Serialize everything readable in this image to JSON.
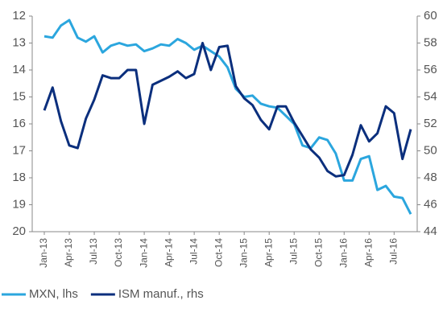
{
  "chart_data": {
    "type": "line",
    "categories": [
      "Jan-13",
      null,
      null,
      "Apr-13",
      null,
      null,
      "Jul-13",
      null,
      null,
      "Oct-13",
      null,
      null,
      "Jan-14",
      null,
      null,
      "Apr-14",
      null,
      null,
      "Jul-14",
      null,
      null,
      "Oct-14",
      null,
      null,
      "Jan-15",
      null,
      null,
      "Apr-15",
      null,
      null,
      "Jul-15",
      null,
      null,
      "Oct-15",
      null,
      null,
      "Jan-16",
      null,
      null,
      "Apr-16",
      null,
      null,
      "Jul-16",
      null,
      null
    ],
    "series": [
      {
        "name": "MXN, lhs",
        "color": "#2ba6de",
        "values": [
          12.75,
          12.8,
          12.35,
          12.15,
          12.8,
          12.95,
          12.75,
          13.35,
          13.1,
          13.0,
          13.1,
          13.05,
          13.3,
          13.2,
          13.05,
          13.1,
          12.85,
          13.0,
          13.25,
          13.1,
          13.3,
          13.5,
          13.9,
          14.7,
          15.0,
          14.95,
          15.25,
          15.35,
          15.4,
          15.7,
          16.0,
          16.8,
          16.9,
          16.5,
          16.6,
          17.1,
          18.1,
          18.1,
          17.3,
          17.2,
          18.45,
          18.3,
          18.7,
          18.75,
          19.35
        ]
      },
      {
        "name": "ISM manuf., rhs",
        "color": "#0b2f7d",
        "axis": "y2",
        "values": [
          53.0,
          54.7,
          52.2,
          50.4,
          50.2,
          52.4,
          53.8,
          55.6,
          55.4,
          55.4,
          56.0,
          56.0,
          52.0,
          54.9,
          55.2,
          55.5,
          55.9,
          55.4,
          55.7,
          58.0,
          56.0,
          57.7,
          57.8,
          54.8,
          53.9,
          53.4,
          52.3,
          51.6,
          53.3,
          53.3,
          52.1,
          51.1,
          50.1,
          49.5,
          48.5,
          48.1,
          48.2,
          49.7,
          51.9,
          50.7,
          51.3,
          53.3,
          52.8,
          49.4,
          51.6
        ]
      }
    ],
    "ylim": [
      20,
      12
    ],
    "yticks": [
      12,
      13,
      14,
      15,
      16,
      17,
      18,
      19,
      20
    ],
    "y2lim": [
      44,
      60
    ],
    "y2ticks": [
      44,
      46,
      48,
      50,
      52,
      54,
      56,
      58,
      60
    ],
    "legend": "bottom"
  }
}
